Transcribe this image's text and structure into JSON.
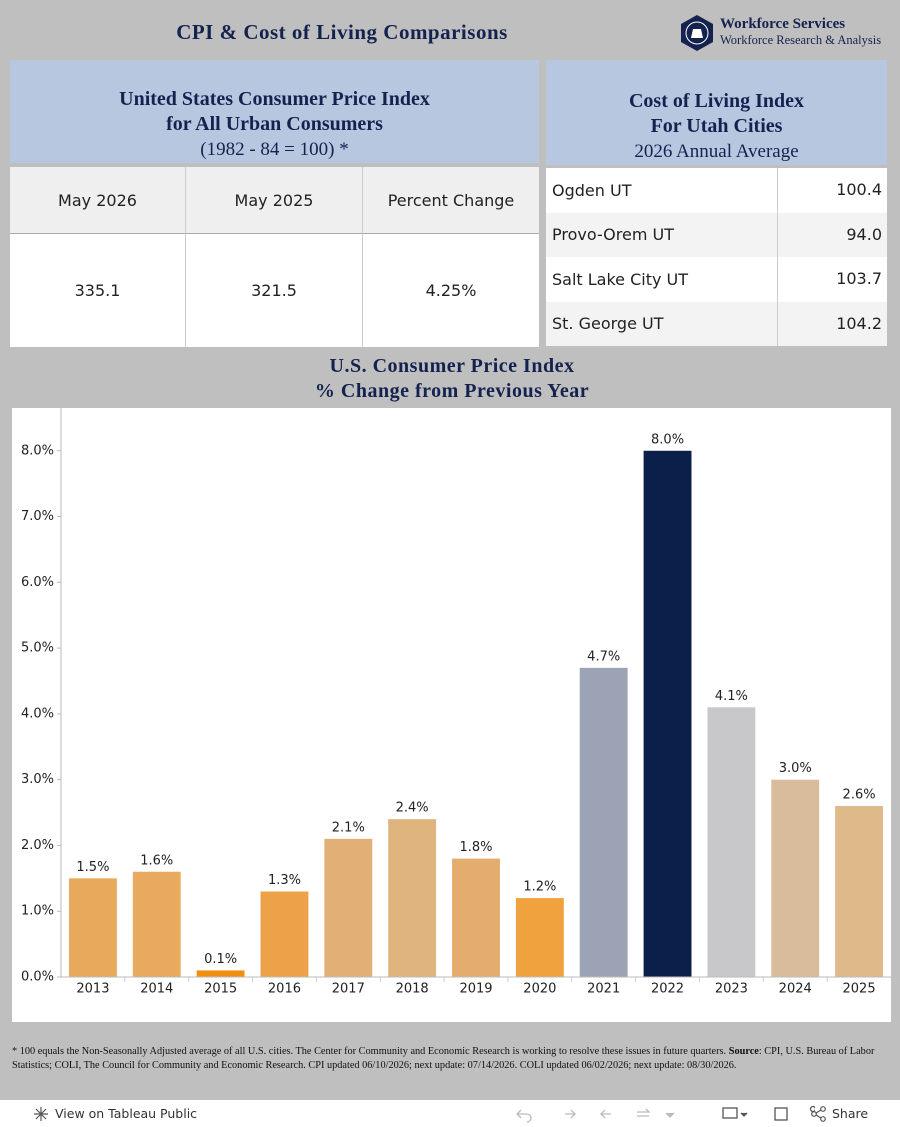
{
  "header": {
    "title": "CPI & Cost of Living Comparisons",
    "org_name": "Workforce Services",
    "org_division": "Workforce Research & Analysis"
  },
  "cpi_table": {
    "title_lines": [
      "United States Consumer Price Index",
      "for All Urban Consumers"
    ],
    "subtitle": "(1982 - 84 = 100) *",
    "columns": [
      "May 2026",
      "May 2025",
      "Percent Change"
    ],
    "row": [
      "335.1",
      "321.5",
      "4.25%"
    ]
  },
  "coli_table": {
    "title_lines": [
      "Cost of Living Index",
      "For Utah Cities"
    ],
    "subtitle": "2026 Annual Average",
    "rows": [
      [
        "Ogden UT",
        "100.4"
      ],
      [
        "Provo-Orem UT",
        "94.0"
      ],
      [
        "Salt Lake City UT",
        "103.7"
      ],
      [
        "St. George UT",
        "104.2"
      ]
    ]
  },
  "chart_data": {
    "type": "bar",
    "title": "U.S. Consumer Price Index",
    "subtitle": "% Change from Previous Year",
    "categories": [
      "2013",
      "2014",
      "2015",
      "2016",
      "2017",
      "2018",
      "2019",
      "2020",
      "2021",
      "2022",
      "2023",
      "2024",
      "2025"
    ],
    "values": [
      1.5,
      1.6,
      0.1,
      1.3,
      2.1,
      2.4,
      1.8,
      1.2,
      4.7,
      8.0,
      4.1,
      3.0,
      2.6
    ],
    "value_labels": [
      "1.5%",
      "1.6%",
      "0.1%",
      "1.3%",
      "2.1%",
      "2.4%",
      "1.8%",
      "1.2%",
      "4.7%",
      "8.0%",
      "4.1%",
      "3.0%",
      "2.6%"
    ],
    "colors": [
      "#e8a95c",
      "#e9aa60",
      "#f0900e",
      "#eda24a",
      "#e2b077",
      "#e0b47e",
      "#e4ad6e",
      "#f0a23f",
      "#9ba3b4",
      "#0a1f4a",
      "#c8c8ca",
      "#d9bc9b",
      "#deb98a"
    ],
    "ylim": [
      0,
      8.65
    ],
    "yticks": [
      {
        "value": 0,
        "label": "0.0%"
      },
      {
        "value": 1,
        "label": "1.0%"
      },
      {
        "value": 2,
        "label": "2.0%"
      },
      {
        "value": 3,
        "label": "3.0%"
      },
      {
        "value": 4,
        "label": "4.0%"
      },
      {
        "value": 5,
        "label": "5.0%"
      },
      {
        "value": 6,
        "label": "6.0%"
      },
      {
        "value": 7,
        "label": "7.0%"
      },
      {
        "value": 8,
        "label": "8.0%"
      }
    ],
    "grid": false
  },
  "footnote": {
    "before": "* 100 equals the Non-Seasonally Adjusted average of all U.S. cities. The Center for Community and Economic Research is working to resolve these issues in future quarters. ",
    "source_label": "Source",
    "after": ": CPI, U.S. Bureau of Labor Statistics; COLI, The Council for Community and Economic Research. CPI updated 06/10/2026; next update: 07/14/2026. COLI updated 06/02/2026; next update: 08/30/2026."
  },
  "toolbar": {
    "view_link": "View on Tableau Public",
    "share": "Share"
  }
}
